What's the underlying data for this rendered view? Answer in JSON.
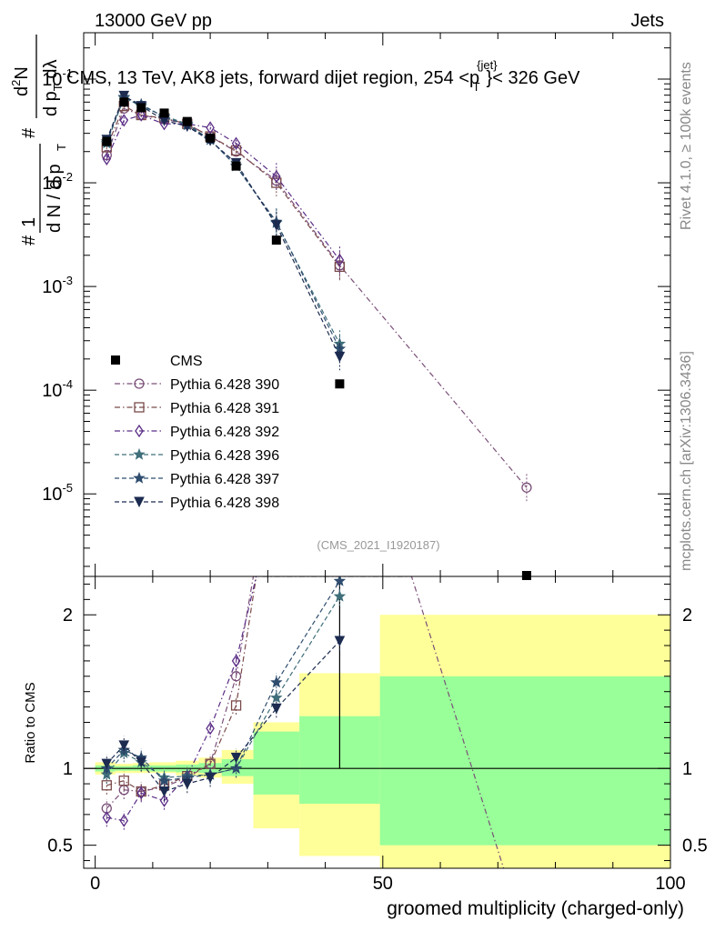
{
  "header": {
    "left": "13000 GeV pp",
    "right": "Jets"
  },
  "side_labels": {
    "rivet": "Rivet 4.1.0, ≥ 100k events",
    "mcplots": "mcplots.cern.ch [arXiv:1306.3436]"
  },
  "chart_data": [
    {
      "type": "scatter",
      "panel": "main",
      "title": "CMS, 13 TeV, AK8 jets, forward dijet region, 254 <p_T^{jet}< 326 GeV",
      "title_parts": {
        "main": "CMS, 13 TeV, AK8 jets, forward dijet region, 254 <p",
        "sup": "{jet}",
        "sub": "T",
        "tail": "}< 326 GeV"
      },
      "ylabel": "1/(dN/dp_T) d²N/(dp_T dλ)",
      "ylabel_parts": {
        "num": "1",
        "den": "d N / d p",
        "den_sub": "T",
        "rhs_num": "d",
        "rhs_num_sup": "2",
        "rhs_num_tail": "N",
        "rhs_den": "d p",
        "rhs_den_sub": "T",
        "rhs_den_tail": " dλ",
        "hash": "#"
      },
      "yscale": "log",
      "ylim": [
        1.6e-06,
        0.28
      ],
      "yticks": [
        {
          "mant": "10",
          "exp": "-1",
          "value": 0.1
        },
        {
          "mant": "10",
          "exp": "-2",
          "value": 0.01
        },
        {
          "mant": "10",
          "exp": "-3",
          "value": 0.001
        },
        {
          "mant": "10",
          "exp": "-4",
          "value": 0.0001
        },
        {
          "mant": "10",
          "exp": "-5",
          "value": 1e-05
        }
      ],
      "xlim": [
        -2,
        100
      ],
      "watermark": "(CMS_2021_I1920187)",
      "legend_position": "middle-left",
      "cms": {
        "name": "CMS",
        "color": "#000000",
        "x": [
          2,
          5,
          8,
          12,
          16,
          20,
          24.5,
          31.5,
          42.5,
          75
        ],
        "y": [
          0.025,
          0.06,
          0.053,
          0.047,
          0.039,
          0.027,
          0.0145,
          0.0028,
          0.000115,
          1.6e-06
        ]
      },
      "series": [
        {
          "name": "Pythia 6.428 390",
          "color": "#7a4f78",
          "marker": "circle",
          "dash": "dashdot",
          "x": [
            2,
            5,
            8,
            12,
            16,
            20,
            24.5,
            31.5,
            42.5,
            75
          ],
          "y": [
            0.0185,
            0.052,
            0.045,
            0.041,
            0.037,
            0.028,
            0.02,
            0.0105,
            0.0016,
            1.15e-05
          ]
        },
        {
          "name": "Pythia 6.428 391",
          "color": "#7a4a4a",
          "marker": "square",
          "dash": "dashdot",
          "x": [
            2,
            5,
            8,
            12,
            16,
            20,
            24.5,
            31.5,
            42.5
          ],
          "y": [
            0.022,
            0.055,
            0.045,
            0.042,
            0.037,
            0.028,
            0.0205,
            0.01,
            0.00155
          ]
        },
        {
          "name": "Pythia 6.428 392",
          "color": "#5a2d86",
          "marker": "diamond",
          "dash": "dashdot",
          "x": [
            2,
            5,
            8,
            12,
            16,
            20,
            24.5,
            31.5,
            42.5
          ],
          "y": [
            0.017,
            0.04,
            0.045,
            0.037,
            0.037,
            0.034,
            0.024,
            0.0115,
            0.0018
          ]
        },
        {
          "name": "Pythia 6.428 396",
          "color": "#3f6f7a",
          "marker": "star",
          "dash": "dash",
          "x": [
            2,
            5,
            8,
            12,
            16,
            20,
            24.5,
            31.5,
            42.5
          ],
          "y": [
            0.024,
            0.066,
            0.055,
            0.044,
            0.037,
            0.026,
            0.0145,
            0.0041,
            0.00028
          ]
        },
        {
          "name": "Pythia 6.428 397",
          "color": "#2f4d6e",
          "marker": "star",
          "dash": "dash",
          "x": [
            2,
            5,
            8,
            12,
            16,
            20,
            24.5,
            31.5,
            42.5
          ],
          "y": [
            0.025,
            0.067,
            0.057,
            0.043,
            0.036,
            0.026,
            0.0145,
            0.0042,
            0.00025
          ]
        },
        {
          "name": "Pythia 6.428 398",
          "color": "#1c2b50",
          "marker": "triangle-down",
          "dash": "dash",
          "x": [
            2,
            5,
            8,
            12,
            16,
            20,
            24.5,
            31.5,
            42.5
          ],
          "y": [
            0.026,
            0.069,
            0.055,
            0.04,
            0.035,
            0.0255,
            0.0155,
            0.0039,
            0.00021
          ]
        }
      ]
    },
    {
      "type": "scatter",
      "panel": "ratio",
      "ylabel": "Ratio to CMS",
      "xlabel": "groomed multiplicity (charged-only)",
      "ylim": [
        0.35,
        2.25
      ],
      "yticks": [
        "0.5",
        "1",
        "2"
      ],
      "xlim": [
        -2,
        100
      ],
      "xticks": [
        "0",
        "50",
        "100"
      ],
      "reference_line": 1,
      "bands": [
        {
          "x0": 0,
          "x1": 3.5,
          "yellow": [
            0.96,
            1.04
          ],
          "green": [
            0.98,
            1.02
          ]
        },
        {
          "x0": 3.5,
          "x1": 6.5,
          "yellow": [
            0.97,
            1.03
          ],
          "green": [
            0.985,
            1.015
          ]
        },
        {
          "x0": 6.5,
          "x1": 9.5,
          "yellow": [
            0.97,
            1.035
          ],
          "green": [
            0.985,
            1.02
          ]
        },
        {
          "x0": 9.5,
          "x1": 14,
          "yellow": [
            0.97,
            1.04
          ],
          "green": [
            0.98,
            1.02
          ]
        },
        {
          "x0": 14,
          "x1": 18,
          "yellow": [
            0.955,
            1.05
          ],
          "green": [
            0.975,
            1.025
          ]
        },
        {
          "x0": 18,
          "x1": 22,
          "yellow": [
            0.94,
            1.07
          ],
          "green": [
            0.97,
            1.035
          ]
        },
        {
          "x0": 22,
          "x1": 27.5,
          "yellow": [
            0.9,
            1.12
          ],
          "green": [
            0.95,
            1.06
          ]
        },
        {
          "x0": 27.5,
          "x1": 35.5,
          "yellow": [
            0.61,
            1.3
          ],
          "green": [
            0.83,
            1.24
          ]
        },
        {
          "x0": 35.5,
          "x1": 49.5,
          "yellow": [
            0.43,
            1.62
          ],
          "green": [
            0.77,
            1.34
          ]
        },
        {
          "x0": 49.5,
          "x1": 100,
          "yellow": [
            0.35,
            2.0
          ],
          "green": [
            0.5,
            1.6
          ]
        }
      ],
      "cms_errors": {
        "x": [
          42.5
        ],
        "lo": [
          1.0
        ],
        "hi": [
          2.25
        ]
      },
      "series": [
        {
          "name": "Pythia 6.428 390",
          "color": "#7a4f78",
          "marker": "circle",
          "dash": "dashdot",
          "x": [
            2,
            5,
            8,
            12,
            16,
            20,
            24.5,
            27.5,
            40,
            55,
            71
          ],
          "y": [
            0.74,
            0.86,
            0.85,
            0.88,
            0.94,
            1.03,
            1.6,
            2.25,
            2.25,
            2.25,
            0.35
          ],
          "markers": [
            true,
            true,
            true,
            true,
            true,
            true,
            true,
            false,
            false,
            false,
            false
          ]
        },
        {
          "name": "Pythia 6.428 391",
          "color": "#7a4a4a",
          "marker": "square",
          "dash": "dashdot",
          "x": [
            2,
            5,
            8,
            12,
            16,
            20,
            24.5,
            28
          ],
          "y": [
            0.89,
            0.92,
            0.85,
            0.89,
            0.95,
            1.03,
            1.41,
            2.25
          ],
          "markers": [
            true,
            true,
            true,
            true,
            true,
            true,
            true,
            false
          ]
        },
        {
          "name": "Pythia 6.428 392",
          "color": "#5a2d86",
          "marker": "diamond",
          "dash": "dashdot",
          "x": [
            2,
            5,
            8,
            12,
            16,
            20,
            24.5,
            28
          ],
          "y": [
            0.68,
            0.66,
            0.84,
            0.79,
            0.95,
            1.26,
            1.7,
            2.25
          ],
          "markers": [
            true,
            true,
            true,
            true,
            true,
            true,
            true,
            false
          ]
        },
        {
          "name": "Pythia 6.428 396",
          "color": "#3f6f7a",
          "marker": "star",
          "dash": "dash",
          "x": [
            2,
            5,
            8,
            12,
            16,
            20,
            24.5,
            31.5,
            42.5
          ],
          "y": [
            0.96,
            1.1,
            1.04,
            0.94,
            0.95,
            0.96,
            1.0,
            1.46,
            2.12
          ],
          "markers": [
            true,
            true,
            true,
            true,
            true,
            true,
            true,
            true,
            true
          ]
        },
        {
          "name": "Pythia 6.428 397",
          "color": "#2f4d6e",
          "marker": "star",
          "dash": "dash",
          "x": [
            2,
            5,
            8,
            12,
            16,
            20,
            24.5,
            31.5,
            42.5
          ],
          "y": [
            1.0,
            1.12,
            1.07,
            0.92,
            0.94,
            0.96,
            1.0,
            1.56,
            2.22
          ],
          "markers": [
            true,
            true,
            true,
            true,
            true,
            true,
            true,
            true,
            true
          ]
        },
        {
          "name": "Pythia 6.428 398",
          "color": "#1c2b50",
          "marker": "triangle-down",
          "dash": "dash",
          "x": [
            2,
            5,
            8,
            12,
            16,
            20,
            24.5,
            31.5,
            42.5
          ],
          "y": [
            1.03,
            1.15,
            1.04,
            0.85,
            0.9,
            0.94,
            1.07,
            1.39,
            1.83
          ],
          "markers": [
            true,
            true,
            true,
            true,
            true,
            true,
            true,
            true,
            true
          ]
        }
      ]
    }
  ]
}
